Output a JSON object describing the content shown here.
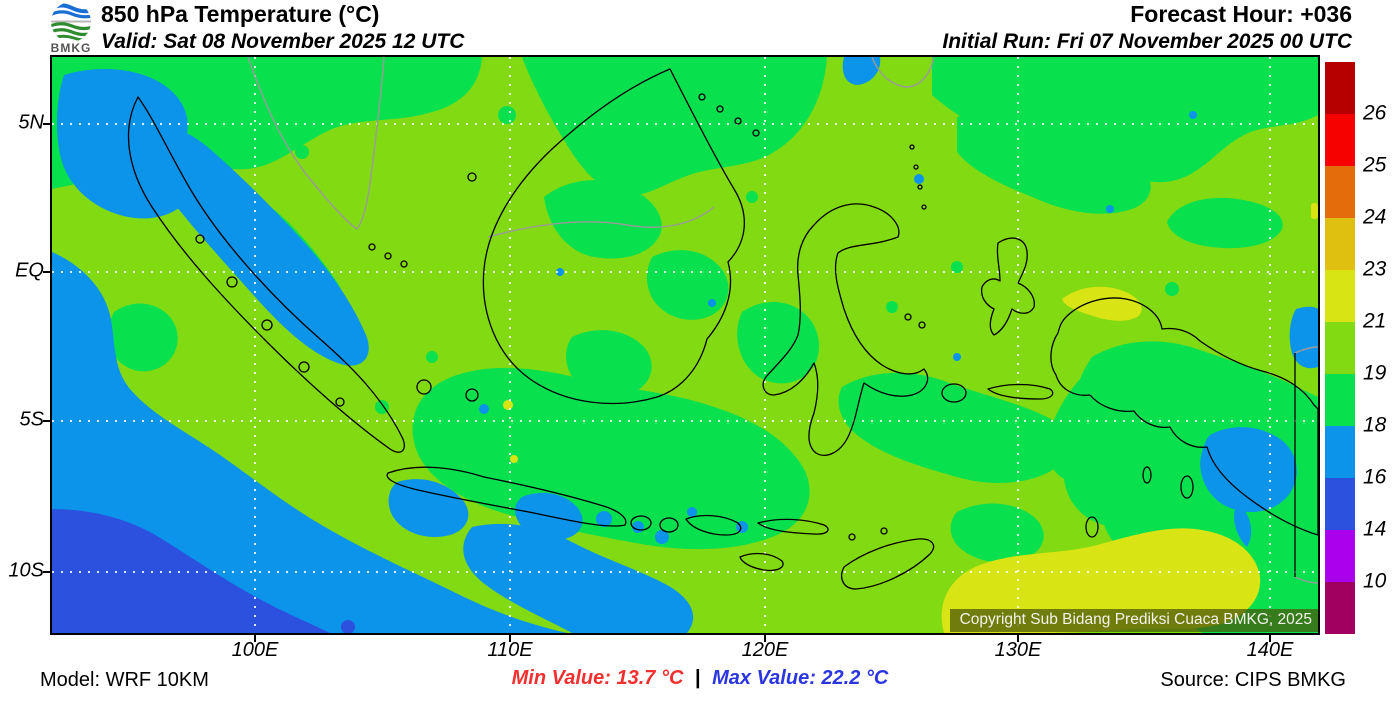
{
  "header": {
    "logo_text": "BMKG",
    "title": "850 hPa Temperature (°C)",
    "valid": "Valid: Sat 08 November 2025 12 UTC",
    "forecast_hour": "Forecast Hour: +036",
    "initial_run": "Initial Run: Fri 07 November 2025 00 UTC"
  },
  "map": {
    "lat_labels": [
      "5N",
      "EQ",
      "5S",
      "10S"
    ],
    "lon_labels": [
      "100E",
      "110E",
      "120E",
      "130E",
      "140E"
    ],
    "copyright": "Copyright Sub Bidang Prediksi Cuaca BMKG, 2025"
  },
  "colorbar": {
    "labels": [
      "26",
      "25",
      "24",
      "23",
      "21",
      "19",
      "18",
      "16",
      "14",
      "10"
    ],
    "colors": [
      "#b60000",
      "#f60000",
      "#e56c0a",
      "#dfc010",
      "#d8e414",
      "#82da12",
      "#09e04e",
      "#0c93ea",
      "#2b51de",
      "#ab00ee",
      "#a10060"
    ]
  },
  "footer": {
    "model": "Model: WRF 10KM",
    "min_value": "Min Value: 13.7 °C",
    "separator": "|",
    "max_value": "Max Value: 22.2 °C",
    "min_color": "#f23030",
    "max_color": "#2b35e0",
    "source": "Source: CIPS BMKG"
  }
}
